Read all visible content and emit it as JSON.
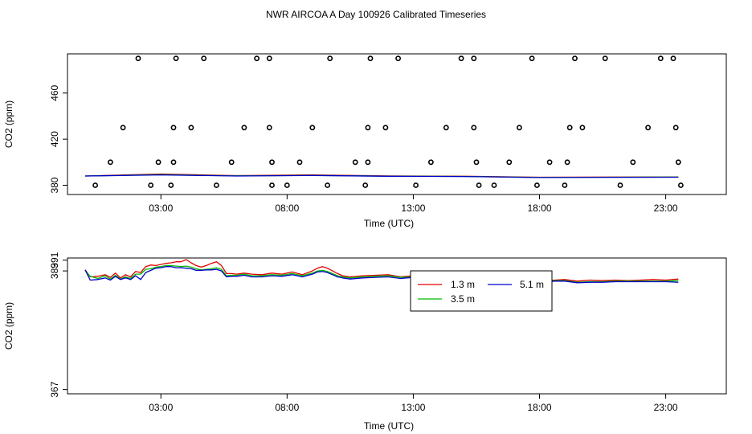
{
  "title": "NWR AIRCOA A  Day 100926  Calibrated Timeseries",
  "colors": {
    "s1": "#e00000",
    "s2": "#00bb00",
    "s3": "#0000cc",
    "axis": "#000000",
    "outlier": "#000000"
  },
  "chart_data": [
    {
      "type": "scatter",
      "panel": "top",
      "xlabel": "Time (UTC)",
      "ylabel": "CO2 (ppm)",
      "xlim": [
        -0.7,
        25.4
      ],
      "ylim": [
        372,
        494
      ],
      "x_ticks": [
        3,
        8,
        13,
        18,
        23
      ],
      "x_tick_labels": [
        "03:00",
        "08:00",
        "13:00",
        "18:00",
        "23:00"
      ],
      "y_ticks": [
        380,
        420,
        460
      ],
      "y_tick_labels": [
        "380",
        "420",
        "460"
      ],
      "outliers": [
        [
          0.4,
          380
        ],
        [
          1.0,
          400
        ],
        [
          1.5,
          430
        ],
        [
          2.1,
          490
        ],
        [
          2.6,
          380
        ],
        [
          2.9,
          400
        ],
        [
          3.4,
          380
        ],
        [
          3.5,
          400
        ],
        [
          3.5,
          430
        ],
        [
          3.6,
          490
        ],
        [
          4.2,
          430
        ],
        [
          4.7,
          490
        ],
        [
          5.2,
          380
        ],
        [
          5.8,
          400
        ],
        [
          6.3,
          430
        ],
        [
          6.8,
          490
        ],
        [
          7.3,
          490
        ],
        [
          7.3,
          430
        ],
        [
          7.4,
          400
        ],
        [
          7.4,
          380
        ],
        [
          8.0,
          380
        ],
        [
          8.5,
          400
        ],
        [
          9.0,
          430
        ],
        [
          9.6,
          380
        ],
        [
          9.7,
          490
        ],
        [
          10.7,
          400
        ],
        [
          11.1,
          380
        ],
        [
          11.2,
          400
        ],
        [
          11.2,
          430
        ],
        [
          11.3,
          490
        ],
        [
          11.9,
          430
        ],
        [
          12.4,
          490
        ],
        [
          13.1,
          380
        ],
        [
          13.7,
          400
        ],
        [
          14.3,
          430
        ],
        [
          14.9,
          490
        ],
        [
          15.4,
          490
        ],
        [
          15.4,
          430
        ],
        [
          15.5,
          400
        ],
        [
          15.6,
          380
        ],
        [
          16.2,
          380
        ],
        [
          16.8,
          400
        ],
        [
          17.2,
          430
        ],
        [
          17.7,
          490
        ],
        [
          17.9,
          380
        ],
        [
          18.4,
          400
        ],
        [
          19.0,
          380
        ],
        [
          19.1,
          400
        ],
        [
          19.2,
          430
        ],
        [
          19.4,
          490
        ],
        [
          19.7,
          430
        ],
        [
          20.6,
          490
        ],
        [
          21.2,
          380
        ],
        [
          21.7,
          400
        ],
        [
          22.3,
          430
        ],
        [
          22.8,
          490
        ],
        [
          23.3,
          490
        ],
        [
          23.4,
          430
        ],
        [
          23.5,
          400
        ],
        [
          23.6,
          380
        ]
      ],
      "series": [
        {
          "name": "1.3 m",
          "x": [
            0,
            3,
            6,
            9,
            12,
            15,
            18,
            21,
            23.5
          ],
          "values": [
            388.0,
            389.8,
            388.4,
            389.0,
            388.1,
            387.8,
            387.0,
            387.1,
            387.2
          ]
        },
        {
          "name": "3.5 m",
          "x": [
            0,
            3,
            6,
            9,
            12,
            15,
            18,
            21,
            23.5
          ],
          "values": [
            388.0,
            389.3,
            388.2,
            388.6,
            387.9,
            387.7,
            386.8,
            387.0,
            387.1
          ]
        },
        {
          "name": "5.1 m",
          "x": [
            0,
            3,
            6,
            9,
            12,
            15,
            18,
            21,
            23.5
          ],
          "values": [
            388.0,
            389.0,
            388.0,
            388.5,
            387.8,
            387.6,
            386.7,
            386.9,
            387.0
          ]
        }
      ]
    },
    {
      "type": "line",
      "panel": "bottom",
      "xlabel": "Time (UTC)",
      "ylabel": "CO2 (ppm)",
      "xlim": [
        -0.7,
        25.4
      ],
      "ylim": [
        366.2,
        391.4
      ],
      "x_ticks": [
        3,
        8,
        13,
        18,
        23
      ],
      "x_tick_labels": [
        "03:00",
        "08:00",
        "13:00",
        "18:00",
        "23:00"
      ],
      "y_ticks": [
        367,
        389,
        391
      ],
      "y_tick_labels": [
        "367",
        "389",
        "391"
      ],
      "legend": {
        "placement": "top-center",
        "entries": [
          "1.3 m",
          "5.1 m",
          "3.5 m"
        ]
      },
      "series": [
        {
          "name": "1.3 m",
          "x": [
            0,
            0.2,
            0.5,
            0.8,
            1.0,
            1.2,
            1.4,
            1.6,
            1.8,
            2.0,
            2.2,
            2.4,
            2.6,
            2.8,
            3.0,
            3.2,
            3.4,
            3.6,
            3.8,
            4.0,
            4.2,
            4.4,
            4.6,
            4.8,
            5.0,
            5.2,
            5.4,
            5.6,
            5.8,
            6.0,
            6.3,
            6.6,
            7.0,
            7.4,
            7.8,
            8.2,
            8.6,
            9.0,
            9.2,
            9.4,
            9.6,
            9.8,
            10.0,
            10.2,
            10.5,
            11.0,
            11.5,
            12.0,
            12.5,
            13.0,
            13.5,
            14.0,
            14.5,
            15.0,
            15.3,
            15.6,
            16.0,
            16.5,
            17.0,
            17.5,
            18.0,
            18.3,
            18.6,
            19.0,
            19.5,
            20.0,
            20.5,
            21.0,
            21.5,
            22.0,
            22.5,
            23.0,
            23.5
          ],
          "values": [
            389.2,
            387.9,
            388.0,
            388.3,
            387.8,
            388.6,
            387.7,
            388.3,
            387.9,
            388.9,
            388.7,
            389.8,
            390.1,
            390.0,
            390.2,
            390.4,
            390.5,
            390.7,
            390.7,
            391.1,
            390.5,
            390.0,
            389.7,
            390.0,
            390.4,
            390.7,
            390.0,
            388.5,
            388.5,
            388.4,
            388.6,
            388.4,
            388.3,
            388.6,
            388.4,
            388.8,
            388.3,
            389.0,
            389.5,
            389.8,
            389.5,
            389.0,
            388.5,
            388.1,
            387.9,
            388.1,
            388.2,
            388.3,
            387.9,
            388.1,
            388.0,
            388.1,
            387.9,
            387.7,
            387.2,
            386.8,
            386.9,
            386.6,
            386.7,
            386.5,
            386.6,
            387.2,
            387.3,
            387.4,
            387.1,
            387.3,
            387.2,
            387.3,
            387.2,
            387.3,
            387.4,
            387.3,
            387.5
          ]
        },
        {
          "name": "3.5 m",
          "x": [
            0,
            0.2,
            0.5,
            0.8,
            1.0,
            1.2,
            1.4,
            1.6,
            1.8,
            2.0,
            2.2,
            2.4,
            2.6,
            2.8,
            3.0,
            3.2,
            3.4,
            3.6,
            3.8,
            4.0,
            4.2,
            4.4,
            4.6,
            4.8,
            5.0,
            5.2,
            5.4,
            5.6,
            5.8,
            6.0,
            6.3,
            6.6,
            7.0,
            7.4,
            7.8,
            8.2,
            8.6,
            9.0,
            9.2,
            9.4,
            9.6,
            9.8,
            10.0,
            10.2,
            10.5,
            11.0,
            11.5,
            12.0,
            12.5,
            13.0,
            13.5,
            14.0,
            14.5,
            15.0,
            15.3,
            15.6,
            16.0,
            16.5,
            17.0,
            17.5,
            18.0,
            18.3,
            18.6,
            19.0,
            19.5,
            20.0,
            20.5,
            21.0,
            21.5,
            22.0,
            22.5,
            23.0,
            23.5
          ],
          "values": [
            389.1,
            388.0,
            387.6,
            388.1,
            387.5,
            388.2,
            387.5,
            387.9,
            387.6,
            388.4,
            388.4,
            389.3,
            389.4,
            389.7,
            389.8,
            390.0,
            390.0,
            389.9,
            389.8,
            389.9,
            389.7,
            389.4,
            389.2,
            389.3,
            389.4,
            389.6,
            389.3,
            388.1,
            388.2,
            388.2,
            388.4,
            388.1,
            388.1,
            388.3,
            388.2,
            388.5,
            388.1,
            388.6,
            389.0,
            389.1,
            388.9,
            388.5,
            388.1,
            387.9,
            387.7,
            387.9,
            388.0,
            388.1,
            387.8,
            387.9,
            387.9,
            387.9,
            387.7,
            387.5,
            387.0,
            386.6,
            386.7,
            386.5,
            386.6,
            386.4,
            386.5,
            387.1,
            387.2,
            387.2,
            386.9,
            387.0,
            387.0,
            387.1,
            387.1,
            387.1,
            387.1,
            387.1,
            387.2
          ]
        },
        {
          "name": "5.1 m",
          "x": [
            0,
            0.2,
            0.5,
            0.8,
            1.0,
            1.2,
            1.4,
            1.6,
            1.8,
            2.0,
            2.2,
            2.4,
            2.6,
            2.8,
            3.0,
            3.2,
            3.4,
            3.6,
            3.8,
            4.0,
            4.2,
            4.4,
            4.6,
            4.8,
            5.0,
            5.2,
            5.4,
            5.6,
            5.8,
            6.0,
            6.3,
            6.6,
            7.0,
            7.4,
            7.8,
            8.2,
            8.6,
            9.0,
            9.2,
            9.4,
            9.6,
            9.8,
            10.0,
            10.2,
            10.5,
            11.0,
            11.5,
            12.0,
            12.5,
            13.0,
            13.5,
            14.0,
            14.5,
            15.0,
            15.3,
            15.6,
            16.0,
            16.5,
            17.0,
            17.5,
            18.0,
            18.3,
            18.6,
            19.0,
            19.5,
            20.0,
            20.5,
            21.0,
            21.5,
            22.0,
            22.5,
            23.0,
            23.5
          ],
          "values": [
            389.2,
            387.3,
            387.4,
            387.7,
            387.3,
            388.0,
            387.4,
            387.7,
            387.4,
            388.1,
            387.4,
            388.7,
            389.1,
            389.5,
            389.6,
            389.8,
            389.8,
            389.6,
            389.6,
            389.5,
            389.4,
            389.1,
            389.1,
            389.2,
            389.2,
            389.3,
            389.0,
            387.9,
            388.0,
            388.0,
            388.2,
            387.9,
            387.9,
            388.1,
            388.0,
            388.3,
            387.9,
            388.4,
            388.8,
            388.9,
            388.7,
            388.3,
            387.9,
            387.7,
            387.5,
            387.7,
            387.8,
            387.9,
            387.6,
            387.8,
            387.8,
            387.8,
            387.6,
            387.4,
            386.9,
            386.5,
            386.6,
            386.4,
            386.5,
            386.3,
            386.4,
            387.0,
            387.1,
            387.1,
            386.8,
            386.9,
            386.9,
            387.0,
            387.0,
            387.0,
            387.0,
            387.0,
            386.9
          ]
        }
      ]
    }
  ]
}
